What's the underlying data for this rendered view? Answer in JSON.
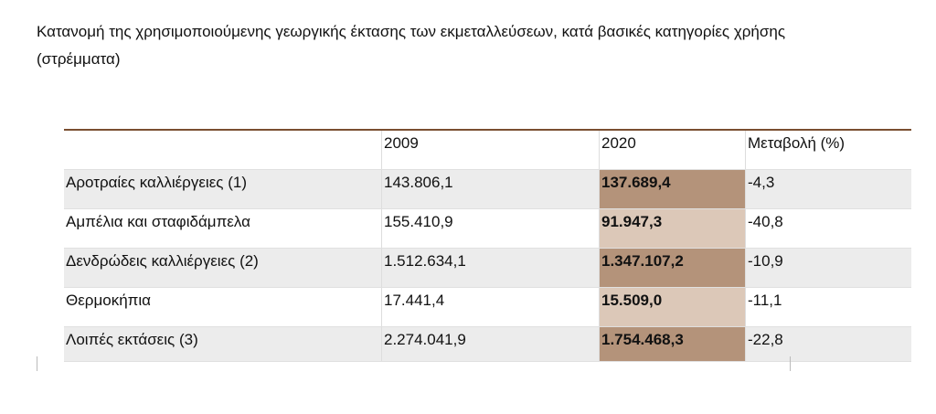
{
  "header": {
    "title": "Κατανομή της χρησιμοποιούμενης γεωργικής έκτασης των εκμεταλλεύσεων, κατά βασικές κατηγορίες χρήσης (στρέμματα)"
  },
  "table": {
    "columns": [
      "",
      "2009",
      "2020",
      "Μεταβολή (%)"
    ],
    "rows": [
      [
        "Αροτραίες καλλιέργειες (1)",
        "143.806,1",
        "137.689,4",
        "-4,3"
      ],
      [
        "Αμπέλια και σταφιδάμπελα",
        "155.410,9",
        "91.947,3",
        "-40,8"
      ],
      [
        "Δενδρώδεις καλλιέργειες (2)",
        "1.512.634,1",
        "1.347.107,2",
        "-10,9"
      ],
      [
        "Θερμοκήπια",
        "17.441,4",
        "15.509,0",
        "-11,1"
      ],
      [
        "Λοιπές εκτάσεις (3)",
        "2.274.041,9",
        "1.754.468,3",
        "-22,8"
      ]
    ]
  }
}
